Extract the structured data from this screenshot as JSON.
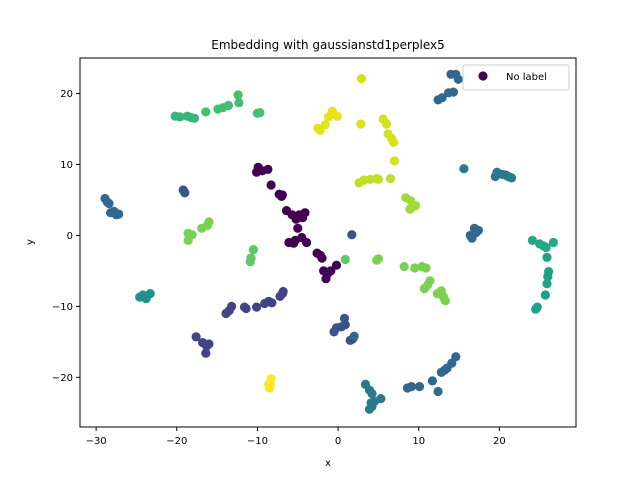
{
  "chart_data": {
    "type": "scatter",
    "title": "Embedding with gaussianstd1perplex5",
    "xlabel": "x",
    "ylabel": "y",
    "xlim": [
      -32,
      29.5
    ],
    "ylim": [
      -27,
      25
    ],
    "xticks": [
      -30,
      -20,
      -10,
      0,
      10,
      20
    ],
    "yticks": [
      -20,
      -10,
      0,
      10,
      20
    ],
    "grid": false,
    "legend": {
      "position": "top-right",
      "entries": [
        "No label"
      ],
      "marker_color": "#440154"
    },
    "colormap": "viridis",
    "series": [
      {
        "name": "No label",
        "points": [
          [
            -9.9,
            9.6
          ],
          [
            -9.4,
            9.1
          ],
          [
            -8.7,
            9.3
          ],
          [
            -10.1,
            8.9
          ],
          [
            -8.3,
            7.1
          ],
          [
            -7.3,
            5.8
          ],
          [
            -7.0,
            5.5
          ],
          [
            -6.4,
            3.5
          ],
          [
            -5.7,
            2.9
          ],
          [
            -5.2,
            2.3
          ],
          [
            -4.8,
            2.9
          ],
          [
            -4.1,
            3.2
          ],
          [
            -4.4,
            2.5
          ],
          [
            -5.0,
            1.0
          ],
          [
            -6.1,
            -1.0
          ],
          [
            -5.3,
            -0.7
          ],
          [
            -4.5,
            -0.3
          ],
          [
            -3.9,
            -1.0
          ],
          [
            -2.6,
            -2.5
          ],
          [
            -2.2,
            -2.8
          ],
          [
            -1.8,
            -5.0
          ],
          [
            -1.3,
            -5.4
          ],
          [
            -1.5,
            -6.1
          ],
          [
            -0.9,
            -5.0
          ],
          [
            -0.2,
            -4.2
          ],
          [
            -9.8,
            9.4
          ],
          [
            -6.9,
            5.7
          ],
          [
            -5.5,
            -1.1
          ],
          [
            -4.9,
            2.7
          ],
          [
            -2.0,
            -3.2
          ],
          [
            -17.6,
            -14.3
          ],
          [
            -16.8,
            -15.1
          ],
          [
            -16.3,
            -15.6
          ],
          [
            -16.4,
            -16.6
          ],
          [
            -16.0,
            -15.3
          ],
          [
            -13.2,
            -10.0
          ],
          [
            -13.5,
            -10.6
          ],
          [
            -13.9,
            -11.0
          ],
          [
            -11.4,
            -10.3
          ],
          [
            -11.6,
            -10.1
          ],
          [
            -10.1,
            -10.1
          ],
          [
            -9.1,
            -9.6
          ],
          [
            -8.6,
            -9.3
          ],
          [
            -8.2,
            -9.5
          ],
          [
            -7.2,
            -8.6
          ],
          [
            -6.9,
            -8.2
          ],
          [
            -6.8,
            -7.9
          ],
          [
            -19.2,
            6.4
          ],
          [
            -19.0,
            6.0
          ],
          [
            0.4,
            -12.9
          ],
          [
            0.9,
            -12.6
          ],
          [
            0.8,
            -11.7
          ],
          [
            -0.2,
            -13.0
          ],
          [
            -0.5,
            -13.6
          ],
          [
            1.5,
            -14.8
          ],
          [
            1.8,
            -14.6
          ],
          [
            2.0,
            -14.2
          ],
          [
            14.0,
            22.7
          ],
          [
            14.6,
            22.7
          ],
          [
            12.4,
            19.1
          ],
          [
            12.9,
            19.4
          ],
          [
            13.7,
            20.1
          ],
          [
            14.3,
            20.2
          ],
          [
            14.9,
            22.0
          ],
          [
            -28.9,
            5.2
          ],
          [
            -28.6,
            4.7
          ],
          [
            -28.4,
            4.5
          ],
          [
            -28.2,
            3.2
          ],
          [
            -27.8,
            3.4
          ],
          [
            -27.5,
            2.9
          ],
          [
            -27.2,
            3.0
          ],
          [
            16.4,
            0.0
          ],
          [
            16.6,
            -0.4
          ],
          [
            16.9,
            1.0
          ],
          [
            17.1,
            0.4
          ],
          [
            17.4,
            0.7
          ],
          [
            1.7,
            0.1
          ],
          [
            12.4,
            -22.0
          ],
          [
            9.1,
            -21.3
          ],
          [
            8.6,
            -21.5
          ],
          [
            10.1,
            -21.3
          ],
          [
            11.7,
            -20.5
          ],
          [
            13.2,
            -19.0
          ],
          [
            13.5,
            -18.7
          ],
          [
            14.1,
            -18.0
          ],
          [
            14.6,
            -17.1
          ],
          [
            12.8,
            -19.3
          ],
          [
            15.6,
            9.4
          ],
          [
            19.7,
            8.9
          ],
          [
            19.5,
            8.3
          ],
          [
            20.4,
            8.6
          ],
          [
            21.1,
            8.3
          ],
          [
            21.5,
            8.1
          ],
          [
            20.8,
            8.5
          ],
          [
            3.4,
            -21.0
          ],
          [
            3.9,
            -21.8
          ],
          [
            4.2,
            -22.3
          ],
          [
            5.3,
            -23.0
          ],
          [
            4.1,
            -23.6
          ],
          [
            3.9,
            -24.5
          ],
          [
            4.2,
            -24.1
          ],
          [
            4.5,
            -23.4
          ],
          [
            -24.6,
            -8.7
          ],
          [
            -24.2,
            -8.4
          ],
          [
            -23.8,
            -8.9
          ],
          [
            -23.3,
            -8.2
          ],
          [
            -23.7,
            -8.5
          ],
          [
            24.5,
            -10.4
          ],
          [
            24.7,
            -10.1
          ],
          [
            25.7,
            -8.4
          ],
          [
            25.9,
            -6.8
          ],
          [
            26.0,
            -5.8
          ],
          [
            26.1,
            -5.1
          ],
          [
            25.9,
            -3.1
          ],
          [
            24.1,
            -0.7
          ],
          [
            25.0,
            -1.2
          ],
          [
            25.5,
            -1.5
          ],
          [
            25.8,
            -1.7
          ],
          [
            26.7,
            -1.0
          ],
          [
            -20.2,
            16.8
          ],
          [
            -19.6,
            16.7
          ],
          [
            -18.7,
            16.8
          ],
          [
            -18.2,
            16.6
          ],
          [
            -17.8,
            16.5
          ],
          [
            -16.4,
            17.4
          ],
          [
            -14.9,
            17.8
          ],
          [
            -14.3,
            18.0
          ],
          [
            -13.6,
            18.3
          ],
          [
            -12.4,
            19.8
          ],
          [
            -12.3,
            18.7
          ],
          [
            -10.0,
            17.2
          ],
          [
            -9.7,
            17.3
          ],
          [
            -10.5,
            -2.0
          ],
          [
            -10.8,
            -3.2
          ],
          [
            -10.9,
            -3.7
          ],
          [
            0.9,
            -3.4
          ],
          [
            4.8,
            -3.5
          ],
          [
            5.0,
            -3.3
          ],
          [
            8.2,
            -4.4
          ],
          [
            9.5,
            -4.6
          ],
          [
            10.4,
            -4.4
          ],
          [
            10.9,
            -4.6
          ],
          [
            10.7,
            -7.5
          ],
          [
            11.1,
            -7.0
          ],
          [
            11.4,
            -6.4
          ],
          [
            12.3,
            -8.2
          ],
          [
            12.8,
            -7.8
          ],
          [
            13.1,
            -8.7
          ],
          [
            13.3,
            -9.2
          ],
          [
            -18.6,
            -0.7
          ],
          [
            -18.6,
            0.3
          ],
          [
            -18.1,
            0.1
          ],
          [
            -16.9,
            1.0
          ],
          [
            -16.2,
            1.4
          ],
          [
            -16.0,
            1.9
          ],
          [
            8.4,
            5.3
          ],
          [
            9.0,
            4.9
          ],
          [
            8.9,
            3.7
          ],
          [
            9.4,
            4.1
          ],
          [
            9.6,
            4.2
          ],
          [
            2.6,
            7.4
          ],
          [
            3.2,
            7.8
          ],
          [
            4.0,
            7.9
          ],
          [
            4.8,
            8.0
          ],
          [
            5.0,
            7.9
          ],
          [
            6.5,
            8.0
          ],
          [
            7.0,
            10.5
          ],
          [
            -2.5,
            15.1
          ],
          [
            -2.2,
            14.8
          ],
          [
            -1.6,
            15.6
          ],
          [
            -1.2,
            16.7
          ],
          [
            -0.8,
            17.1
          ],
          [
            -0.7,
            17.5
          ],
          [
            -0.1,
            16.8
          ],
          [
            2.8,
            15.7
          ],
          [
            5.6,
            16.4
          ],
          [
            6.0,
            15.7
          ],
          [
            6.2,
            14.3
          ],
          [
            6.6,
            13.7
          ],
          [
            6.9,
            13.1
          ],
          [
            2.9,
            22.1
          ],
          [
            -8.3,
            -20.2
          ],
          [
            -8.4,
            -20.9
          ],
          [
            -8.5,
            -21.5
          ],
          [
            -8.6,
            -21.0
          ]
        ],
        "colors": [
          "#440154",
          "#440154",
          "#440154",
          "#440154",
          "#440154",
          "#440154",
          "#440154",
          "#440154",
          "#440154",
          "#440154",
          "#440154",
          "#440154",
          "#440154",
          "#440154",
          "#440154",
          "#440154",
          "#440154",
          "#440154",
          "#440154",
          "#440154",
          "#440154",
          "#440154",
          "#440154",
          "#440154",
          "#440154",
          "#440154",
          "#440154",
          "#440154",
          "#440154",
          "#440154",
          "#414487",
          "#414487",
          "#414487",
          "#414487",
          "#414487",
          "#414487",
          "#414487",
          "#414487",
          "#414487",
          "#414487",
          "#414487",
          "#414487",
          "#414487",
          "#414487",
          "#414487",
          "#414487",
          "#414487",
          "#3b528b",
          "#3b528b",
          "#3b528b",
          "#3b528b",
          "#3b528b",
          "#3b528b",
          "#3b528b",
          "#3b528b",
          "#3b528b",
          "#31688e",
          "#31688e",
          "#31688e",
          "#31688e",
          "#31688e",
          "#31688e",
          "#31688e",
          "#31688e",
          "#31688e",
          "#31688e",
          "#31688e",
          "#31688e",
          "#31688e",
          "#31688e",
          "#31688e",
          "#31688e",
          "#31688e",
          "#31688e",
          "#31688e",
          "#31688e",
          "#3b528b",
          "#31688e",
          "#31688e",
          "#31688e",
          "#31688e",
          "#31688e",
          "#31688e",
          "#31688e",
          "#31688e",
          "#31688e",
          "#31688e",
          "#2a788e",
          "#2a788e",
          "#2a788e",
          "#2a788e",
          "#2a788e",
          "#2a788e",
          "#2a788e",
          "#2a788e",
          "#2a788e",
          "#2a788e",
          "#2a788e",
          "#2a788e",
          "#2a788e",
          "#2a788e",
          "#2a788e",
          "#21918c",
          "#21918c",
          "#21918c",
          "#21918c",
          "#21918c",
          "#1fa187",
          "#1fa187",
          "#1fa187",
          "#1fa187",
          "#1fa187",
          "#1fa187",
          "#1fa187",
          "#22a884",
          "#22a884",
          "#22a884",
          "#22a884",
          "#22a884",
          "#35b779",
          "#35b779",
          "#35b779",
          "#35b779",
          "#35b779",
          "#44bf70",
          "#44bf70",
          "#44bf70",
          "#44bf70",
          "#44bf70",
          "#44bf70",
          "#44bf70",
          "#44bf70",
          "#5ec962",
          "#5ec962",
          "#5ec962",
          "#5ec962",
          "#7ad151",
          "#7ad151",
          "#7ad151",
          "#7ad151",
          "#7ad151",
          "#7ad151",
          "#7ad151",
          "#7ad151",
          "#7ad151",
          "#7ad151",
          "#7ad151",
          "#7ad151",
          "#7ad151",
          "#7ad151",
          "#7ad151",
          "#7ad151",
          "#7ad151",
          "#7ad151",
          "#7ad151",
          "#a0da39",
          "#a0da39",
          "#a0da39",
          "#a0da39",
          "#a0da39",
          "#bddf26",
          "#bddf26",
          "#bddf26",
          "#bddf26",
          "#bddf26",
          "#bddf26",
          "#d2e21b",
          "#e1e418",
          "#e1e418",
          "#e1e418",
          "#e5e419",
          "#e5e419",
          "#e5e419",
          "#e5e419",
          "#dde318",
          "#d2e21b",
          "#d2e21b",
          "#d2e21b",
          "#d2e21b",
          "#d2e21b",
          "#d2e21b",
          "#fde725",
          "#fde725",
          "#fde725",
          "#fde725"
        ]
      }
    ]
  }
}
